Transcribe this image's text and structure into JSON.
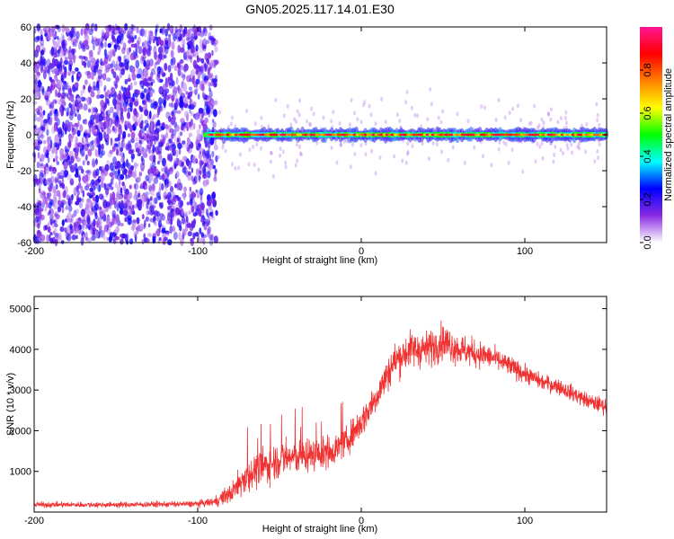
{
  "title": "GN05.2025.117.14.01.E30",
  "chart_data": [
    {
      "type": "heatmap",
      "xlabel": "Height of straight line (km)",
      "ylabel": "Frequency (Hz)",
      "xlim": [
        -200,
        150
      ],
      "ylim": [
        -60,
        60
      ],
      "xticks": [
        -200,
        -100,
        0,
        100
      ],
      "yticks": [
        -60,
        -40,
        -20,
        0,
        20,
        40,
        60
      ],
      "grid": false,
      "colorbar": {
        "label": "Normalized spectral amplitude",
        "range": [
          0,
          1
        ],
        "ticks": [
          "0.0",
          "0.2",
          "0.4",
          "0.6",
          "0.8"
        ],
        "colors": [
          "#ffffff",
          "#8a2be2",
          "#0000ff",
          "#00ffff",
          "#00ff00",
          "#ffff00",
          "#ff8000",
          "#ff0000",
          "#ff1493"
        ]
      },
      "regions": [
        {
          "x": [
            -200,
            -95
          ],
          "freq": [
            -60,
            60
          ],
          "amplitude": [
            0.05,
            0.25
          ],
          "pattern": "broadband noise"
        },
        {
          "x": [
            -95,
            150
          ],
          "freq": [
            -3,
            3
          ],
          "amplitude": [
            0.3,
            0.95
          ],
          "pattern": "narrow band centered at 0 Hz"
        }
      ]
    },
    {
      "type": "line",
      "xlabel": "Height of straight line (km)",
      "ylabel": "SNR (10 * v/v)",
      "xlim": [
        -200,
        150
      ],
      "ylim": [
        0,
        5300
      ],
      "xticks": [
        -200,
        -100,
        0,
        100
      ],
      "yticks": [
        1000,
        2000,
        3000,
        4000,
        5000
      ],
      "color": "#f03232",
      "grid": false,
      "envelope": {
        "x": [
          -200,
          -150,
          -100,
          -90,
          -80,
          -70,
          -60,
          -50,
          -40,
          -30,
          -20,
          -10,
          0,
          10,
          20,
          30,
          40,
          50,
          60,
          70,
          80,
          90,
          100,
          110,
          120,
          130,
          140,
          150
        ],
        "mean": [
          180,
          180,
          200,
          250,
          450,
          900,
          1100,
          1300,
          1350,
          1400,
          1450,
          1700,
          2200,
          2900,
          3700,
          4000,
          4000,
          4200,
          4000,
          3900,
          3800,
          3600,
          3400,
          3200,
          3100,
          2900,
          2700,
          2600
        ],
        "spread": [
          120,
          120,
          140,
          200,
          450,
          700,
          800,
          800,
          750,
          700,
          650,
          600,
          700,
          700,
          800,
          800,
          800,
          800,
          700,
          600,
          500,
          450,
          400,
          350,
          350,
          350,
          350,
          350
        ]
      }
    }
  ]
}
